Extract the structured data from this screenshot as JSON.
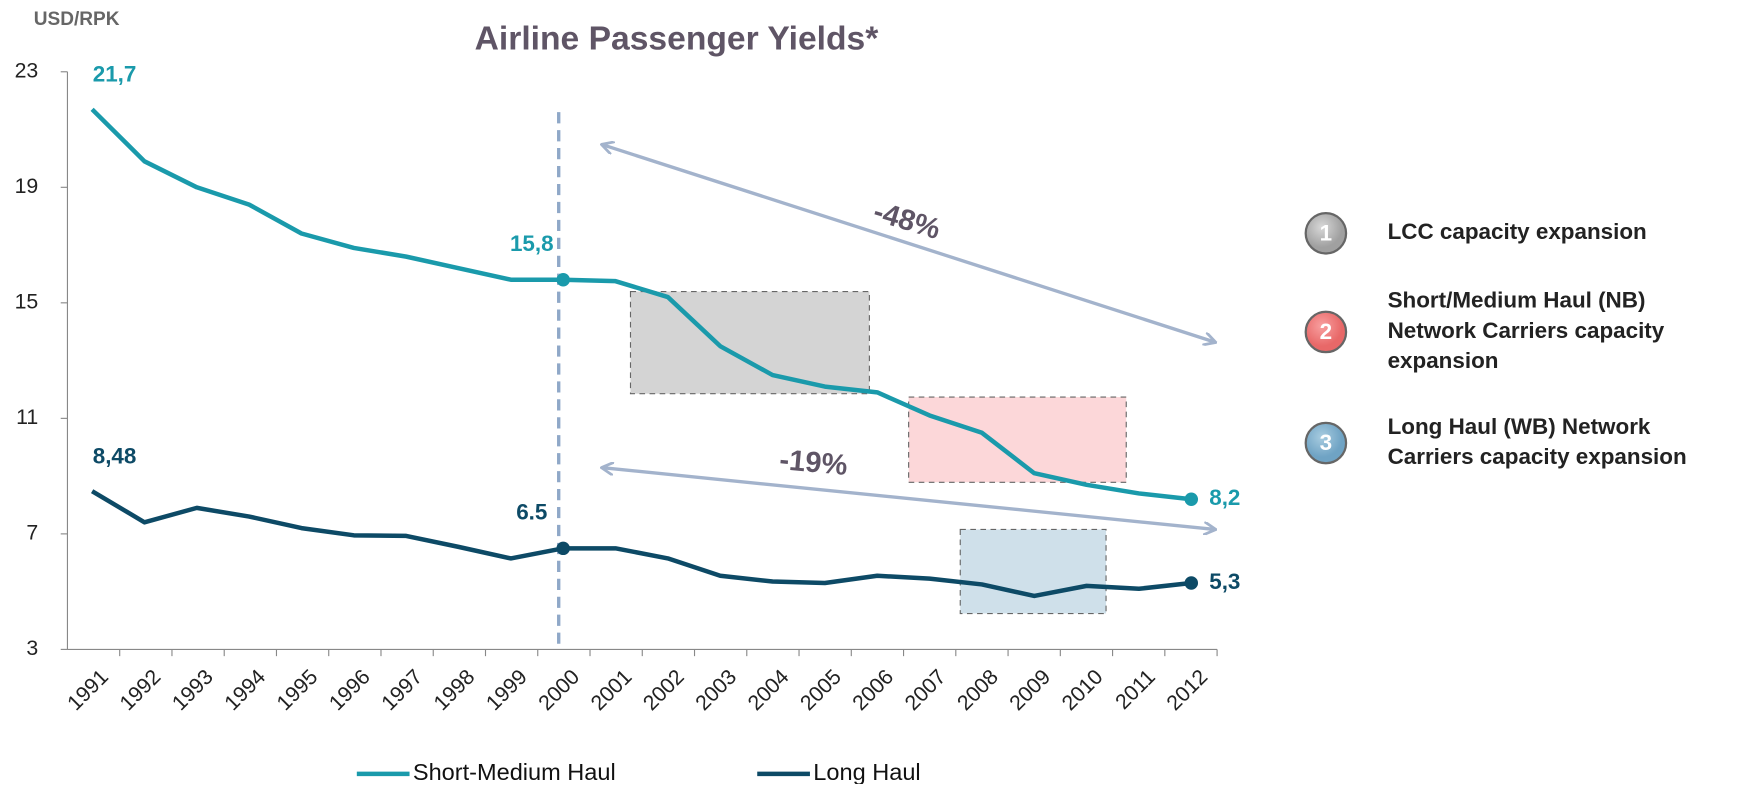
{
  "chart_data": {
    "type": "line",
    "title": "Airline Passenger Yields*",
    "y_label": "USD/RPK",
    "categories": [
      "1991",
      "1992",
      "1993",
      "1994",
      "1995",
      "1996",
      "1997",
      "1998",
      "1999",
      "2000",
      "2001",
      "2002",
      "2003",
      "2004",
      "2005",
      "2006",
      "2007",
      "2008",
      "2009",
      "2010",
      "2011",
      "2012"
    ],
    "series": [
      {
        "name": "Short-Medium Haul",
        "color": "#1a9aab",
        "values": [
          21.7,
          19.9,
          19.0,
          18.4,
          17.4,
          16.9,
          16.6,
          16.2,
          15.8,
          15.8,
          15.75,
          15.2,
          13.5,
          12.5,
          12.1,
          11.9,
          11.1,
          10.5,
          9.1,
          8.7,
          8.4,
          8.2
        ],
        "value_labels": [
          "21,7",
          null,
          null,
          null,
          null,
          null,
          null,
          null,
          null,
          "15,8",
          null,
          null,
          null,
          null,
          null,
          null,
          null,
          null,
          null,
          null,
          null,
          "8,2"
        ]
      },
      {
        "name": "Long Haul",
        "color": "#0d4a66",
        "values": [
          8.48,
          7.4,
          7.9,
          7.6,
          7.2,
          6.95,
          6.93,
          6.55,
          6.15,
          6.5,
          6.5,
          6.15,
          5.55,
          5.35,
          5.3,
          5.55,
          5.45,
          5.25,
          4.85,
          5.2,
          5.1,
          5.3
        ],
        "value_labels": [
          "8,48",
          null,
          null,
          null,
          null,
          null,
          null,
          null,
          null,
          "6.5",
          null,
          null,
          null,
          null,
          null,
          null,
          null,
          null,
          null,
          null,
          null,
          "5,3"
        ]
      }
    ],
    "ylim": [
      3,
      23
    ],
    "yticks": [
      3,
      7,
      11,
      15,
      19,
      23
    ],
    "annotations": [
      "-48%",
      "-19%"
    ],
    "drivers": [
      {
        "number": "1",
        "lines": [
          "LCC capacity expansion"
        ]
      },
      {
        "number": "2",
        "lines": [
          "Short/Medium Haul (NB)",
          "Network Carriers capacity",
          "expansion"
        ]
      },
      {
        "number": "3",
        "lines": [
          "Long Haul (WB) Network",
          "Carriers capacity expansion"
        ]
      }
    ]
  }
}
